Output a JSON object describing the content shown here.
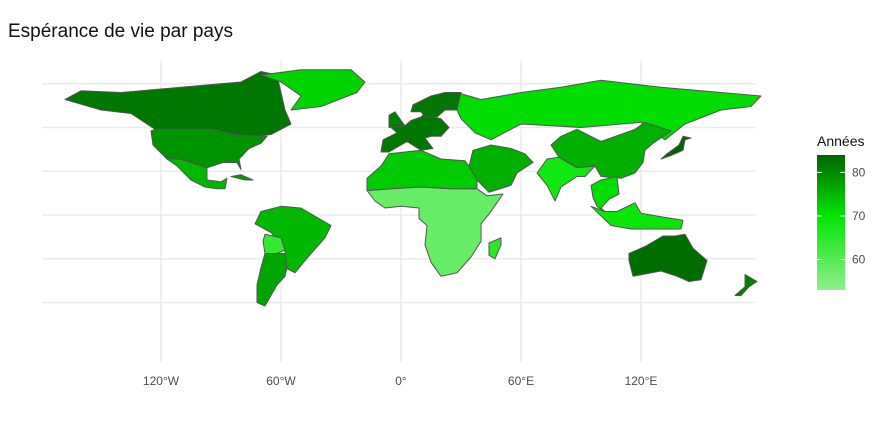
{
  "title": "Espérance de vie par pays",
  "x_axis": {
    "ticks": [
      "120°W",
      "60°W",
      "0°",
      "60°E",
      "120°E"
    ],
    "tick_values": [
      -120,
      -60,
      0,
      60,
      120
    ]
  },
  "grid": true,
  "legend": {
    "title": "Années",
    "labels": [
      "80",
      "70",
      "60"
    ],
    "values": [
      80,
      70,
      60
    ],
    "range": [
      53,
      84
    ],
    "colors": {
      "low": "#90ee90",
      "mid": "#00e600",
      "high": "#006400"
    },
    "placement": "right"
  },
  "colors": {
    "border": "#555555",
    "grid": "#ebebeb",
    "background": "#ffffff"
  },
  "chart_data": {
    "type": "choropleth",
    "title": "Espérance de vie par pays",
    "legend_title": "Années",
    "regions": [
      {
        "name": "Canada",
        "value": 82
      },
      {
        "name": "United States",
        "value": 79
      },
      {
        "name": "Mexico",
        "value": 75
      },
      {
        "name": "Greenland",
        "value": 72
      },
      {
        "name": "Brazil",
        "value": 75
      },
      {
        "name": "Argentina",
        "value": 77
      },
      {
        "name": "Bolivia",
        "value": 64
      },
      {
        "name": "Western Europe",
        "value": 82
      },
      {
        "name": "Russia",
        "value": 71
      },
      {
        "name": "China",
        "value": 76
      },
      {
        "name": "India",
        "value": 68
      },
      {
        "name": "Sub-Saharan Africa",
        "value": 58
      },
      {
        "name": "North Africa",
        "value": 73
      },
      {
        "name": "Middle East",
        "value": 76
      },
      {
        "name": "Southeast Asia",
        "value": 71
      },
      {
        "name": "Australia",
        "value": 83
      },
      {
        "name": "New Zealand",
        "value": 81
      },
      {
        "name": "Japan",
        "value": 84
      }
    ]
  }
}
